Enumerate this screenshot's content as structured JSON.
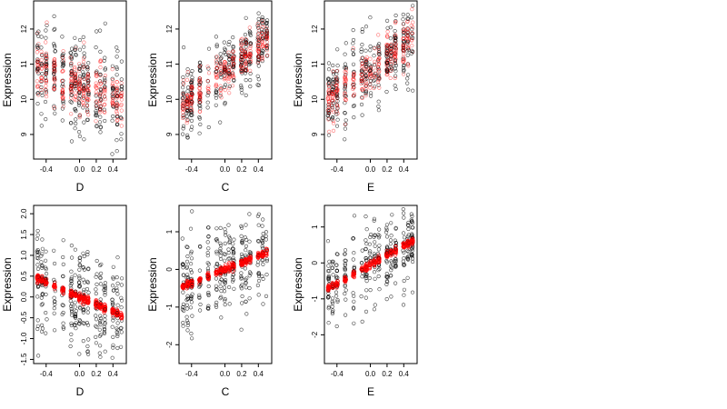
{
  "chart_data": [
    {
      "type": "scatter",
      "xlabel": "D",
      "ylabel": "Expression",
      "xlim": [
        -0.55,
        0.56
      ],
      "ylim": [
        8.3,
        12.8
      ],
      "xticks": [
        -0.4,
        0.0,
        0.2,
        0.4
      ],
      "xtick_labels": [
        "-0.4",
        "0.0",
        "0.2",
        "0.4"
      ],
      "yticks": [
        9,
        10,
        11,
        12
      ],
      "ytick_labels": [
        "9",
        "10",
        "11",
        "12"
      ],
      "grid": false,
      "colors": {
        "observed": "#000000",
        "fitted": "#ff0000"
      },
      "n_points": 300,
      "trend": {
        "x0": -0.5,
        "y0": 10.9,
        "x1": 0.5,
        "y1": 9.9,
        "spread": 0.7
      }
    },
    {
      "type": "scatter",
      "xlabel": "C",
      "ylabel": "Expression",
      "xlim": [
        -0.55,
        0.56
      ],
      "ylim": [
        8.3,
        12.8
      ],
      "xticks": [
        -0.4,
        0.0,
        0.2,
        0.4
      ],
      "xtick_labels": [
        "-0.4",
        "0.0",
        "0.2",
        "0.4"
      ],
      "yticks": [
        9,
        10,
        11,
        12
      ],
      "ytick_labels": [
        "9",
        "10",
        "11",
        "12"
      ],
      "grid": false,
      "colors": {
        "observed": "#000000",
        "fitted": "#ff0000"
      },
      "n_points": 300,
      "trend": {
        "x0": -0.5,
        "y0": 9.9,
        "x1": 0.5,
        "y1": 11.7,
        "spread": 0.5
      }
    },
    {
      "type": "scatter",
      "xlabel": "E",
      "ylabel": "Expression",
      "xlim": [
        -0.55,
        0.56
      ],
      "ylim": [
        8.3,
        12.8
      ],
      "xticks": [
        -0.4,
        0.0,
        0.2,
        0.4
      ],
      "xtick_labels": [
        "-0.4",
        "0.0",
        "0.2",
        "0.4"
      ],
      "yticks": [
        9,
        10,
        11,
        12
      ],
      "ytick_labels": [
        "9",
        "10",
        "11",
        "12"
      ],
      "grid": false,
      "colors": {
        "observed": "#000000",
        "fitted": "#ff0000"
      },
      "n_points": 300,
      "trend": {
        "x0": -0.5,
        "y0": 10.0,
        "x1": 0.5,
        "y1": 11.7,
        "spread": 0.6
      }
    },
    {
      "type": "scatter",
      "xlabel": "D",
      "ylabel": "Expression",
      "xlim": [
        -0.55,
        0.56
      ],
      "ylim": [
        -1.6,
        2.2
      ],
      "xticks": [
        -0.4,
        0.0,
        0.2,
        0.4
      ],
      "xtick_labels": [
        "-0.4",
        "0.0",
        "0.2",
        "0.4"
      ],
      "yticks": [
        -1.5,
        -1.0,
        -0.5,
        0.0,
        0.5,
        1.0,
        1.5,
        2.0
      ],
      "ytick_labels": [
        "-1.5",
        "-1.0",
        "-0.5",
        "0.0",
        "0.5",
        "1.0",
        "1.5",
        "2.0"
      ],
      "grid": false,
      "colors": {
        "observed": "#000000",
        "fitted": "#ff0000"
      },
      "n_points": 300,
      "trend": {
        "x0": -0.5,
        "y0": 0.45,
        "x1": 0.5,
        "y1": -0.45,
        "spread": 0.6
      }
    },
    {
      "type": "scatter",
      "xlabel": "C",
      "ylabel": "Expression",
      "xlim": [
        -0.55,
        0.56
      ],
      "ylim": [
        -2.5,
        1.7
      ],
      "xticks": [
        -0.4,
        0.0,
        0.2,
        0.4
      ],
      "xtick_labels": [
        "-0.4",
        "0.0",
        "0.2",
        "0.4"
      ],
      "yticks": [
        -2,
        -1,
        0,
        1
      ],
      "ytick_labels": [
        "-2",
        "-1",
        "0",
        "1"
      ],
      "grid": false,
      "colors": {
        "observed": "#000000",
        "fitted": "#ff0000"
      },
      "n_points": 300,
      "trend": {
        "x0": -0.5,
        "y0": -0.45,
        "x1": 0.5,
        "y1": 0.45,
        "spread": 0.6
      }
    },
    {
      "type": "scatter",
      "xlabel": "E",
      "ylabel": "Expression",
      "xlim": [
        -0.55,
        0.56
      ],
      "ylim": [
        -2.8,
        1.6
      ],
      "xticks": [
        -0.4,
        0.0,
        0.2,
        0.4
      ],
      "xtick_labels": [
        "-0.4",
        "0.0",
        "0.2",
        "0.4"
      ],
      "yticks": [
        -2,
        -1,
        0,
        1
      ],
      "ytick_labels": [
        "-2",
        "-1",
        "0",
        "1"
      ],
      "grid": false,
      "colors": {
        "observed": "#000000",
        "fitted": "#ff0000"
      },
      "n_points": 300,
      "trend": {
        "x0": -0.5,
        "y0": -0.7,
        "x1": 0.5,
        "y1": 0.6,
        "spread": 0.6
      }
    }
  ]
}
